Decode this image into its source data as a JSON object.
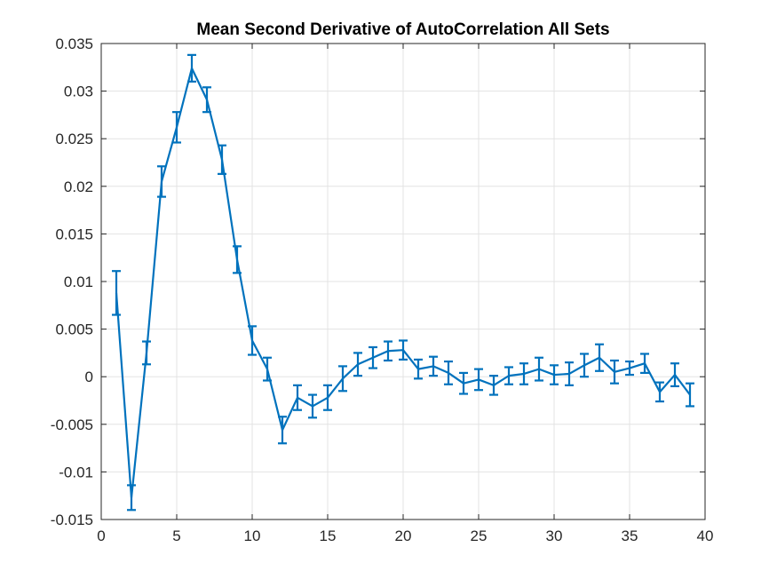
{
  "chart_data": {
    "type": "line",
    "title": "Mean Second Derivative of AutoCorrelation All Sets",
    "xlabel": "",
    "ylabel": "",
    "xlim": [
      0,
      40
    ],
    "ylim": [
      -0.015,
      0.035
    ],
    "grid": true,
    "x_ticks": [
      0,
      5,
      10,
      15,
      20,
      25,
      30,
      35,
      40
    ],
    "y_ticks": [
      -0.015,
      -0.01,
      -0.005,
      0,
      0.005,
      0.01,
      0.015,
      0.02,
      0.025,
      0.03,
      0.035
    ],
    "x_tick_labels": [
      "0",
      "5",
      "10",
      "15",
      "20",
      "25",
      "30",
      "35",
      "40"
    ],
    "y_tick_labels": [
      "-0.015",
      "-0.01",
      "-0.005",
      "0",
      "0.005",
      "0.01",
      "0.015",
      "0.02",
      "0.025",
      "0.03",
      "0.035"
    ],
    "series_color": "#0072BD",
    "series": [
      {
        "x": [
          1,
          2,
          3,
          4,
          5,
          6,
          7,
          8,
          9,
          10,
          11,
          12,
          13,
          14,
          15,
          16,
          17,
          18,
          19,
          20,
          21,
          22,
          23,
          24,
          25,
          26,
          27,
          28,
          29,
          30,
          31,
          32,
          33,
          34,
          35,
          36,
          37,
          38,
          39
        ],
        "values": [
          0.0088,
          -0.0127,
          0.0025,
          0.0205,
          0.0262,
          0.0324,
          0.0291,
          0.0228,
          0.0123,
          0.0038,
          0.0008,
          -0.0056,
          -0.0022,
          -0.0031,
          -0.0022,
          -0.0002,
          0.0013,
          0.002,
          0.0027,
          0.0028,
          0.0008,
          0.0011,
          0.0004,
          -0.0007,
          -0.0003,
          -0.0009,
          0.0001,
          0.0003,
          0.0008,
          0.0002,
          0.0003,
          0.0012,
          0.002,
          0.0005,
          0.0009,
          0.0014,
          -0.0016,
          0.0002,
          -0.0019
        ],
        "errors": [
          0.0023,
          0.0013,
          0.0012,
          0.0016,
          0.0016,
          0.0014,
          0.0013,
          0.0015,
          0.0014,
          0.0015,
          0.0012,
          0.0014,
          0.0013,
          0.0012,
          0.0013,
          0.0013,
          0.0012,
          0.0011,
          0.001,
          0.001,
          0.001,
          0.001,
          0.0012,
          0.0011,
          0.0011,
          0.001,
          0.0009,
          0.0011,
          0.0012,
          0.001,
          0.0012,
          0.0012,
          0.0014,
          0.0012,
          0.0007,
          0.001,
          0.001,
          0.0012,
          0.0012
        ]
      }
    ]
  }
}
